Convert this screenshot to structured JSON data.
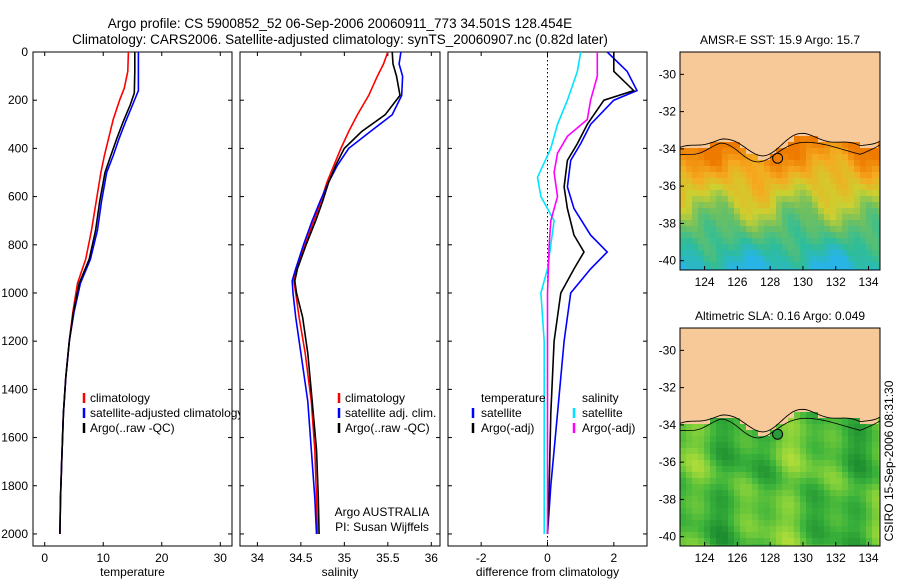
{
  "header": {
    "line1": "Argo profile: CS 5900852_52 06-Sep-2006 20060911_773 34.501S 128.454E",
    "line2": "Climatology: CARS2006. Satellite-adjusted climatology: synTS_20060907.nc (0.82d later)"
  },
  "side_label": "CSIRO 15-Sep-2006 08:31:30",
  "colors": {
    "climatology": "#ff0000",
    "satellite": "#0000ff",
    "argo": "#000000",
    "sal_satellite": "#00e5ff",
    "sal_argo": "#ff00ff",
    "land": "#f7c898"
  },
  "chart_data": [
    {
      "type": "line",
      "xlabel": "temperature",
      "ylabel": "",
      "xlim": [
        -2,
        32
      ],
      "ylim": [
        0,
        2050
      ],
      "y_reversed": true,
      "xticks": [
        "0",
        "10",
        "20",
        "30"
      ],
      "yticks": [
        "0",
        "200",
        "400",
        "600",
        "800",
        "1000",
        "1200",
        "1400",
        "1600",
        "1800",
        "2000"
      ],
      "legend": [
        "climatology",
        "satellite-adjusted climatology",
        "Argo(..raw -QC)"
      ],
      "legend_loc": "lower-center",
      "series": [
        {
          "name": "climatology",
          "color": "#ff0000",
          "points": [
            [
              14.3,
              0
            ],
            [
              14.2,
              80
            ],
            [
              13.6,
              150
            ],
            [
              12.8,
              200
            ],
            [
              11.7,
              280
            ],
            [
              10.9,
              360
            ],
            [
              10.2,
              430
            ],
            [
              9.6,
              500
            ],
            [
              8.8,
              620
            ],
            [
              8.0,
              740
            ],
            [
              7.0,
              860
            ],
            [
              5.6,
              960
            ],
            [
              4.8,
              1080
            ],
            [
              4.2,
              1200
            ],
            [
              3.6,
              1350
            ],
            [
              3.2,
              1500
            ],
            [
              2.9,
              1700
            ],
            [
              2.7,
              1850
            ],
            [
              2.6,
              2000
            ]
          ]
        },
        {
          "name": "satellite-adjusted climatology",
          "color": "#0000ff",
          "points": [
            [
              16.0,
              0
            ],
            [
              16.0,
              80
            ],
            [
              16.0,
              160
            ],
            [
              15.0,
              220
            ],
            [
              13.8,
              290
            ],
            [
              12.7,
              360
            ],
            [
              11.7,
              430
            ],
            [
              10.6,
              500
            ],
            [
              9.7,
              620
            ],
            [
              9.0,
              740
            ],
            [
              7.8,
              860
            ],
            [
              6.1,
              960
            ],
            [
              5.0,
              1080
            ],
            [
              4.2,
              1200
            ],
            [
              3.6,
              1350
            ],
            [
              3.2,
              1500
            ],
            [
              2.9,
              1700
            ],
            [
              2.7,
              1850
            ],
            [
              2.6,
              2000
            ]
          ]
        },
        {
          "name": "Argo(..raw -QC)",
          "color": "#000000",
          "points": [
            [
              15.4,
              0
            ],
            [
              15.4,
              80
            ],
            [
              15.3,
              170
            ],
            [
              14.6,
              220
            ],
            [
              13.4,
              290
            ],
            [
              12.3,
              360
            ],
            [
              11.3,
              430
            ],
            [
              10.3,
              500
            ],
            [
              9.4,
              620
            ],
            [
              8.7,
              740
            ],
            [
              7.6,
              860
            ],
            [
              5.9,
              960
            ],
            [
              4.9,
              1080
            ],
            [
              4.2,
              1200
            ],
            [
              3.6,
              1350
            ],
            [
              3.2,
              1500
            ],
            [
              2.9,
              1700
            ],
            [
              2.7,
              1850
            ],
            [
              2.6,
              2000
            ]
          ]
        }
      ]
    },
    {
      "type": "line",
      "xlabel": "salinity",
      "ylabel": "",
      "xlim": [
        33.8,
        36.1
      ],
      "ylim": [
        0,
        2050
      ],
      "y_reversed": true,
      "xticks": [
        "34",
        "34.5",
        "35",
        "35.5",
        "36"
      ],
      "legend": [
        "climatology",
        "satellite adj. clim.",
        "Argo(..raw -QC)"
      ],
      "legend_loc": "lower-right",
      "annotation": [
        "Argo AUSTRALIA",
        "PI: Susan Wijffels"
      ],
      "series": [
        {
          "name": "climatology",
          "color": "#ff0000",
          "points": [
            [
              35.5,
              0
            ],
            [
              35.45,
              50
            ],
            [
              35.38,
              100
            ],
            [
              35.28,
              180
            ],
            [
              35.15,
              260
            ],
            [
              35.05,
              330
            ],
            [
              34.96,
              400
            ],
            [
              34.88,
              470
            ],
            [
              34.8,
              540
            ],
            [
              34.73,
              620
            ],
            [
              34.65,
              700
            ],
            [
              34.55,
              800
            ],
            [
              34.45,
              900
            ],
            [
              34.42,
              950
            ],
            [
              34.44,
              1000
            ],
            [
              34.48,
              1100
            ],
            [
              34.55,
              1250
            ],
            [
              34.62,
              1450
            ],
            [
              34.66,
              1650
            ],
            [
              34.68,
              1850
            ],
            [
              34.69,
              2000
            ]
          ]
        },
        {
          "name": "satellite adj. clim.",
          "color": "#0000ff",
          "points": [
            [
              35.65,
              0
            ],
            [
              35.63,
              50
            ],
            [
              35.67,
              100
            ],
            [
              35.66,
              180
            ],
            [
              35.55,
              260
            ],
            [
              35.3,
              330
            ],
            [
              35.05,
              400
            ],
            [
              34.92,
              470
            ],
            [
              34.82,
              540
            ],
            [
              34.72,
              620
            ],
            [
              34.63,
              700
            ],
            [
              34.53,
              800
            ],
            [
              34.44,
              900
            ],
            [
              34.4,
              950
            ],
            [
              34.41,
              1000
            ],
            [
              34.44,
              1100
            ],
            [
              34.5,
              1250
            ],
            [
              34.58,
              1450
            ],
            [
              34.62,
              1650
            ],
            [
              34.66,
              1850
            ],
            [
              34.68,
              2000
            ]
          ]
        },
        {
          "name": "Argo(..raw -QC)",
          "color": "#000000",
          "points": [
            [
              35.55,
              0
            ],
            [
              35.56,
              50
            ],
            [
              35.6,
              100
            ],
            [
              35.64,
              180
            ],
            [
              35.47,
              260
            ],
            [
              35.2,
              330
            ],
            [
              35.0,
              400
            ],
            [
              34.9,
              470
            ],
            [
              34.82,
              540
            ],
            [
              34.75,
              620
            ],
            [
              34.67,
              700
            ],
            [
              34.56,
              800
            ],
            [
              34.46,
              900
            ],
            [
              34.43,
              950
            ],
            [
              34.45,
              1000
            ],
            [
              34.52,
              1100
            ],
            [
              34.58,
              1250
            ],
            [
              34.63,
              1450
            ],
            [
              34.68,
              1650
            ],
            [
              34.7,
              1850
            ],
            [
              34.71,
              2000
            ]
          ]
        }
      ]
    },
    {
      "type": "line",
      "xlabel": "difference from climatology",
      "ylabel": "",
      "xlim": [
        -3,
        3
      ],
      "ylim": [
        0,
        2050
      ],
      "y_reversed": true,
      "xticks": [
        "-2",
        "0",
        "2"
      ],
      "legend_groups": [
        {
          "title": "temperature",
          "entries": [
            "satellite",
            "Argo(-adj)"
          ]
        },
        {
          "title": "salinity",
          "entries": [
            "satellite",
            "Argo(-adj)"
          ]
        }
      ],
      "series": [
        {
          "name": "temperature satellite",
          "color": "#0000ff",
          "points": [
            [
              1.8,
              0
            ],
            [
              2.4,
              80
            ],
            [
              2.7,
              160
            ],
            [
              2.0,
              200
            ],
            [
              1.3,
              300
            ],
            [
              1.0,
              380
            ],
            [
              0.7,
              450
            ],
            [
              0.6,
              560
            ],
            [
              0.8,
              650
            ],
            [
              1.3,
              760
            ],
            [
              1.8,
              830
            ],
            [
              1.3,
              900
            ],
            [
              0.7,
              1000
            ],
            [
              0.5,
              1200
            ],
            [
              0.3,
              1500
            ],
            [
              0.1,
              1800
            ],
            [
              0.0,
              2000
            ]
          ]
        },
        {
          "name": "temperature Argo(-adj)",
          "color": "#000000",
          "points": [
            [
              2.0,
              0
            ],
            [
              2.0,
              80
            ],
            [
              2.6,
              160
            ],
            [
              1.7,
              200
            ],
            [
              1.2,
              300
            ],
            [
              0.9,
              380
            ],
            [
              0.6,
              450
            ],
            [
              0.5,
              560
            ],
            [
              0.6,
              650
            ],
            [
              0.8,
              760
            ],
            [
              1.1,
              830
            ],
            [
              0.8,
              900
            ],
            [
              0.4,
              1000
            ],
            [
              0.2,
              1200
            ],
            [
              0.1,
              1500
            ],
            [
              0.05,
              1800
            ],
            [
              0.0,
              2000
            ]
          ]
        },
        {
          "name": "salinity satellite",
          "color": "#00e5ff",
          "points": [
            [
              1.0,
              0
            ],
            [
              0.9,
              80
            ],
            [
              0.6,
              200
            ],
            [
              0.3,
              300
            ],
            [
              0.1,
              400
            ],
            [
              -0.3,
              520
            ],
            [
              -0.2,
              600
            ],
            [
              0.2,
              700
            ],
            [
              0.1,
              800
            ],
            [
              0.0,
              900
            ],
            [
              -0.2,
              1000
            ],
            [
              -0.1,
              1200
            ],
            [
              -0.1,
              1500
            ],
            [
              -0.1,
              1800
            ],
            [
              -0.1,
              2000
            ]
          ]
        },
        {
          "name": "salinity Argo(-adj)",
          "color": "#ff00ff",
          "points": [
            [
              1.5,
              0
            ],
            [
              1.5,
              100
            ],
            [
              1.3,
              200
            ],
            [
              1.2,
              280
            ],
            [
              0.6,
              350
            ],
            [
              0.3,
              420
            ],
            [
              0.2,
              500
            ],
            [
              0.3,
              600
            ],
            [
              0.1,
              700
            ],
            [
              0.05,
              800
            ],
            [
              0.0,
              1000
            ],
            [
              0.0,
              1200
            ],
            [
              0.0,
              1500
            ],
            [
              0.0,
              2000
            ]
          ]
        }
      ]
    },
    {
      "type": "heatmap",
      "title": "AMSR-E SST: 15.9 Argo: 15.7",
      "xlim": [
        122.5,
        134.7
      ],
      "ylim": [
        -40.5,
        -28.8
      ],
      "xticks": [
        "124",
        "126",
        "128",
        "130",
        "132",
        "134"
      ],
      "yticks": [
        "-30",
        "-32",
        "-34",
        "-36",
        "-38",
        "-40"
      ],
      "marker": {
        "lon": 128.454,
        "lat": -34.501
      },
      "colors": {
        "land": "#f7c898",
        "bands": [
          "#ee7a00",
          "#f5aa20",
          "#ccd030",
          "#6ec060",
          "#2ebd9a",
          "#28b4e6"
        ]
      }
    },
    {
      "type": "heatmap",
      "title": "Altimetric SLA: 0.16 Argo: 0.049",
      "xlim": [
        122.5,
        134.7
      ],
      "ylim": [
        -40.5,
        -28.8
      ],
      "xticks": [
        "124",
        "126",
        "128",
        "130",
        "132",
        "134"
      ],
      "yticks": [
        "-30",
        "-32",
        "-34",
        "-36",
        "-38",
        "-40"
      ],
      "marker": {
        "lon": 128.454,
        "lat": -34.501
      },
      "colors": {
        "land": "#f7c898",
        "bands": [
          "#1d8d2f",
          "#3ab23b",
          "#7fcf3a",
          "#c8e23a"
        ]
      }
    }
  ]
}
